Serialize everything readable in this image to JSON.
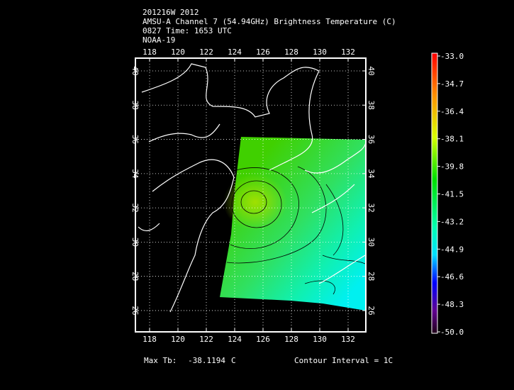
{
  "header": {
    "lines": [
      "201216W 2012",
      "AMSU-A Channel 7 (54.94GHz) Brightness Temperature (C)",
      "0827 Time: 1653 UTC",
      "NOAA-19"
    ]
  },
  "map": {
    "lon_ticks": [
      118,
      120,
      122,
      124,
      126,
      128,
      130,
      132
    ],
    "lat_ticks": [
      26,
      28,
      30,
      32,
      34,
      36,
      38,
      40
    ]
  },
  "colorbar": {
    "ticks": [
      {
        "value": -33,
        "label": "-33.0"
      },
      {
        "value": -34.7,
        "label": "-34.7"
      },
      {
        "value": -36.4,
        "label": "-36.4"
      },
      {
        "value": -38.1,
        "label": "-38.1"
      },
      {
        "value": -39.8,
        "label": "-39.8"
      },
      {
        "value": -41.5,
        "label": "-41.5"
      },
      {
        "value": -43.2,
        "label": "-43.2"
      },
      {
        "value": -44.9,
        "label": "-44.9"
      },
      {
        "value": -46.6,
        "label": "-46.6"
      },
      {
        "value": -48.3,
        "label": "-48.3"
      },
      {
        "value": -50,
        "label": "-50.0"
      }
    ]
  },
  "footer": {
    "max_label": "Max Tb:",
    "max_value": -38.1194,
    "unit": "C",
    "contour": "Contour Interval = 1C"
  }
}
